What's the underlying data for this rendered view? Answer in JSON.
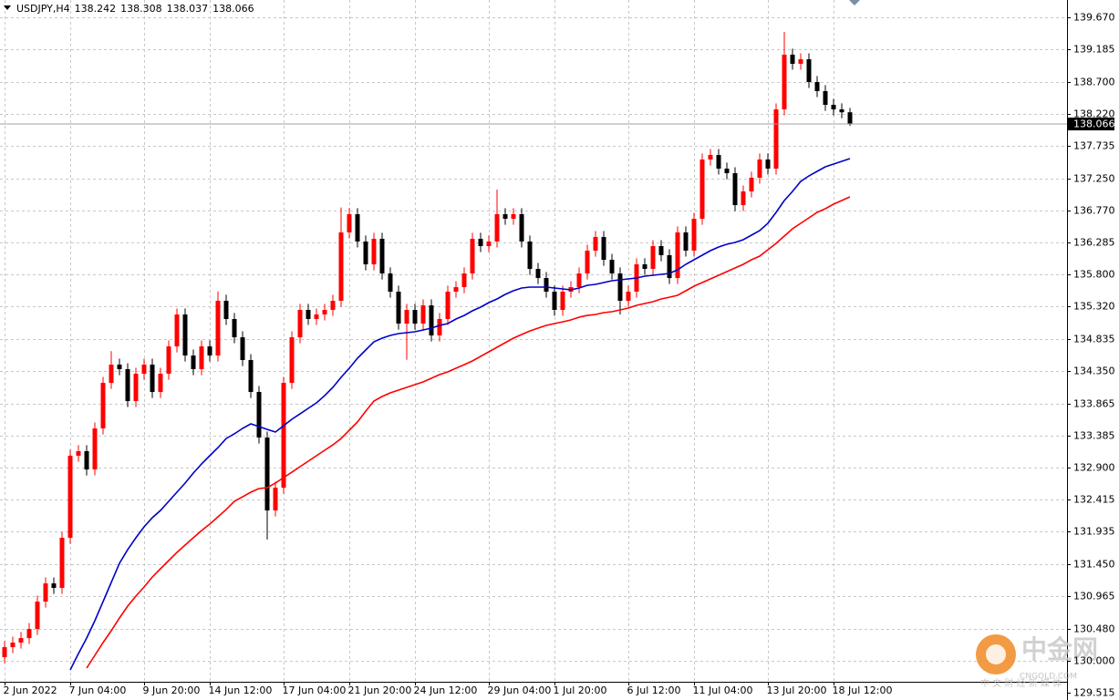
{
  "chart_data": {
    "type": "candlestick",
    "title": "USDJPY,H4",
    "categories": [
      "2 Jun 2022",
      null,
      null,
      null,
      null,
      null,
      null,
      null,
      "7 Jun 04:00",
      null,
      null,
      null,
      null,
      null,
      null,
      null,
      null,
      "9 Jun 20:00",
      null,
      null,
      null,
      null,
      null,
      null,
      null,
      "14 Jun 12:00",
      null,
      null,
      null,
      null,
      null,
      null,
      null,
      null,
      "17 Jun 04:00",
      null,
      null,
      null,
      null,
      null,
      null,
      null,
      "21 Jun 20:00",
      null,
      null,
      null,
      null,
      null,
      null,
      null,
      "24 Jun 12:00",
      null,
      null,
      null,
      null,
      null,
      null,
      null,
      null,
      "29 Jun 04:00",
      null,
      null,
      null,
      null,
      null,
      null,
      null,
      "1 Jul 20:00",
      null,
      null,
      null,
      null,
      null,
      null,
      null,
      null,
      "6 Jul 12:00",
      null,
      null,
      null,
      null,
      null,
      null,
      null,
      "11 Jul 04:00",
      null,
      null,
      null,
      null,
      null,
      null,
      null,
      null,
      "13 Jul 20:00",
      null,
      null,
      null,
      null,
      null,
      null,
      null,
      "18 Jul 12:00",
      null,
      null
    ],
    "open": [
      130.05,
      130.2,
      130.269,
      130.337,
      130.474,
      130.885,
      131.159,
      131.091,
      131.845,
      133.078,
      133.147,
      132.872,
      133.489,
      134.174,
      134.448,
      134.38,
      133.9,
      134.311,
      134.448,
      134.037,
      134.311,
      134.722,
      135.202,
      134.585,
      134.38,
      134.722,
      134.585,
      135.408,
      135.134,
      134.859,
      134.517,
      134.037,
      133.352,
      132.256,
      132.598,
      134.174,
      134.859,
      135.271,
      135.134,
      135.202,
      135.271,
      135.408,
      136.436,
      136.71,
      136.299,
      135.956,
      136.34,
      135.819,
      135.545,
      135.065,
      135.271,
      135.065,
      135.339,
      134.887,
      135.134,
      135.545,
      135.613,
      135.819,
      136.34,
      136.23,
      136.299,
      136.71,
      136.641,
      136.71,
      136.299,
      135.887,
      135.75,
      135.545,
      135.271,
      135.545,
      135.613,
      135.819,
      136.161,
      136.367,
      136.024,
      135.819,
      135.408,
      135.545,
      135.956,
      135.887,
      136.23,
      136.093,
      135.75,
      136.436,
      136.162,
      136.641,
      137.532,
      137.6,
      137.395,
      137.326,
      136.846,
      137.052,
      137.258,
      137.532,
      137.395,
      138.286,
      139.108,
      138.971,
      139.039,
      138.697,
      138.56,
      138.354,
      138.286,
      138.242
    ],
    "high": [
      130.29,
      130.359,
      130.427,
      130.564,
      130.975,
      131.249,
      131.249,
      131.935,
      133.168,
      133.237,
      133.237,
      133.579,
      134.264,
      134.65,
      134.538,
      134.47,
      134.401,
      134.538,
      134.538,
      134.401,
      134.812,
      135.292,
      135.292,
      134.675,
      134.812,
      134.812,
      135.55,
      135.498,
      135.224,
      134.949,
      134.607,
      134.127,
      133.442,
      132.688,
      134.264,
      134.949,
      135.361,
      135.361,
      135.292,
      135.361,
      135.498,
      136.81,
      136.8,
      136.8,
      136.389,
      136.43,
      136.43,
      135.909,
      135.635,
      135.361,
      135.361,
      135.429,
      135.429,
      135.224,
      135.635,
      135.703,
      135.909,
      136.43,
      136.43,
      136.389,
      137.08,
      136.8,
      136.8,
      136.8,
      136.389,
      135.977,
      135.84,
      135.635,
      135.635,
      135.703,
      135.909,
      136.251,
      136.457,
      136.457,
      136.114,
      135.909,
      135.635,
      136.046,
      136.046,
      136.32,
      136.32,
      136.183,
      136.526,
      136.526,
      136.731,
      137.622,
      137.69,
      137.69,
      137.485,
      137.416,
      137.142,
      137.348,
      137.622,
      137.622,
      138.376,
      139.45,
      139.198,
      139.129,
      139.129,
      138.787,
      138.65,
      138.444,
      138.376,
      138.308
    ],
    "low": [
      129.96,
      130.11,
      130.179,
      130.247,
      130.384,
      130.795,
      131.001,
      131.001,
      131.755,
      132.988,
      132.782,
      132.782,
      133.399,
      134.084,
      134.29,
      133.81,
      133.81,
      134.221,
      133.947,
      133.947,
      134.221,
      134.632,
      134.495,
      134.29,
      134.29,
      134.495,
      134.495,
      135.044,
      134.769,
      134.427,
      133.947,
      133.262,
      131.82,
      132.166,
      132.508,
      134.084,
      134.769,
      135.044,
      135.044,
      135.112,
      135.181,
      135.318,
      136.346,
      136.209,
      135.866,
      135.866,
      135.729,
      135.455,
      134.975,
      134.52,
      134.975,
      134.975,
      134.797,
      134.797,
      135.044,
      135.455,
      135.523,
      135.729,
      136.14,
      136.14,
      136.209,
      136.551,
      136.551,
      136.209,
      135.797,
      135.66,
      135.455,
      135.181,
      135.181,
      135.455,
      135.523,
      135.729,
      136.071,
      135.934,
      135.729,
      135.2,
      135.318,
      135.455,
      135.797,
      135.797,
      136.003,
      135.66,
      135.66,
      136.072,
      136.072,
      136.551,
      137.442,
      137.305,
      137.236,
      136.756,
      136.756,
      136.962,
      137.168,
      137.305,
      137.305,
      138.196,
      138.881,
      138.881,
      138.607,
      138.47,
      138.264,
      138.196,
      138.152,
      138.037
    ],
    "close": [
      130.2,
      130.269,
      130.337,
      130.474,
      130.885,
      131.159,
      131.091,
      131.845,
      133.078,
      133.147,
      132.872,
      133.489,
      134.174,
      134.448,
      134.38,
      133.9,
      134.311,
      134.448,
      134.037,
      134.311,
      134.722,
      135.202,
      134.585,
      134.38,
      134.722,
      134.585,
      135.408,
      135.134,
      134.859,
      134.517,
      134.037,
      133.352,
      132.256,
      132.598,
      134.174,
      134.859,
      135.271,
      135.134,
      135.202,
      135.271,
      135.408,
      136.436,
      136.71,
      136.299,
      135.956,
      136.34,
      135.819,
      135.545,
      135.065,
      135.271,
      135.065,
      135.339,
      134.887,
      135.134,
      135.545,
      135.613,
      135.819,
      136.34,
      136.23,
      136.299,
      136.71,
      136.641,
      136.71,
      136.299,
      135.887,
      135.75,
      135.545,
      135.271,
      135.545,
      135.613,
      135.819,
      136.161,
      136.367,
      136.024,
      135.819,
      135.408,
      135.545,
      135.956,
      135.887,
      136.23,
      136.093,
      135.75,
      136.436,
      136.162,
      136.641,
      137.532,
      137.6,
      137.395,
      137.326,
      136.846,
      137.052,
      137.258,
      137.532,
      137.395,
      138.286,
      139.108,
      138.971,
      139.039,
      138.697,
      138.56,
      138.354,
      138.286,
      138.242,
      138.066
    ],
    "up_color": "#ff0000",
    "down_color": "#000000",
    "series": [
      {
        "color": "#0000c8",
        "values": [
          null,
          null,
          null,
          null,
          null,
          null,
          null,
          null,
          129.858,
          130.104,
          130.337,
          130.598,
          130.885,
          131.173,
          131.461,
          131.666,
          131.845,
          132.009,
          132.146,
          132.256,
          132.393,
          132.53,
          132.667,
          132.818,
          132.955,
          133.078,
          133.201,
          133.338,
          133.407,
          133.489,
          133.558,
          133.517,
          133.475,
          133.434,
          133.53,
          133.626,
          133.708,
          133.791,
          133.873,
          133.982,
          134.106,
          134.257,
          134.394,
          134.544,
          134.668,
          134.791,
          134.846,
          134.887,
          134.914,
          134.928,
          134.942,
          134.969,
          134.997,
          135.038,
          135.065,
          135.134,
          135.188,
          135.257,
          135.312,
          135.38,
          135.435,
          135.504,
          135.558,
          135.6,
          135.613,
          135.613,
          135.613,
          135.6,
          135.586,
          135.572,
          135.6,
          135.641,
          135.654,
          135.682,
          135.709,
          135.723,
          135.737,
          135.75,
          135.778,
          135.791,
          135.805,
          135.819,
          135.874,
          135.956,
          136.024,
          136.093,
          136.161,
          136.216,
          136.257,
          136.285,
          136.326,
          136.394,
          136.463,
          136.573,
          136.737,
          136.915,
          137.052,
          137.203,
          137.285,
          137.354,
          137.422,
          137.463,
          137.504,
          137.546
        ]
      },
      {
        "color": "#ff0000",
        "values": [
          null,
          null,
          null,
          null,
          null,
          null,
          null,
          null,
          null,
          null,
          129.885,
          130.077,
          130.269,
          130.447,
          130.639,
          130.817,
          130.968,
          131.105,
          131.255,
          131.379,
          131.502,
          131.625,
          131.735,
          131.845,
          131.954,
          132.05,
          132.16,
          132.269,
          132.393,
          132.461,
          132.53,
          132.585,
          132.598,
          132.667,
          132.749,
          132.831,
          132.914,
          132.996,
          133.078,
          133.16,
          133.242,
          133.338,
          133.462,
          133.585,
          133.749,
          133.9,
          133.969,
          134.024,
          134.065,
          134.106,
          134.147,
          134.188,
          134.243,
          134.298,
          134.339,
          134.394,
          134.448,
          134.503,
          134.572,
          134.64,
          134.709,
          134.777,
          134.846,
          134.901,
          134.955,
          134.997,
          135.038,
          135.065,
          135.092,
          135.12,
          135.161,
          135.188,
          135.202,
          135.23,
          135.243,
          135.271,
          135.298,
          135.339,
          135.367,
          135.394,
          135.435,
          135.462,
          135.49,
          135.558,
          135.627,
          135.682,
          135.737,
          135.791,
          135.846,
          135.901,
          135.956,
          136.024,
          136.079,
          136.175,
          136.271,
          136.381,
          136.49,
          136.573,
          136.655,
          136.737,
          136.792,
          136.86,
          136.915,
          136.97
        ]
      }
    ],
    "ylim": [
      129.68,
      139.93
    ],
    "yticks": [
      {
        "value": 139.67,
        "label": "139.670"
      },
      139.185,
      {
        "value": 138.7,
        "label": "138.700"
      },
      {
        "value": 138.22,
        "label": "138.220"
      },
      137.735,
      {
        "value": 137.25,
        "label": "137.250"
      },
      {
        "value": 136.77,
        "label": "136.770"
      },
      136.285,
      {
        "value": 135.8,
        "label": "135.800"
      },
      {
        "value": 135.32,
        "label": "135.320"
      },
      134.835,
      {
        "value": 134.35,
        "label": "134.350"
      },
      133.865,
      133.385,
      {
        "value": 132.9,
        "label": "132.900"
      },
      132.415,
      131.935,
      {
        "value": 131.45,
        "label": "131.450"
      },
      130.965,
      {
        "value": 130.48,
        "label": "130.480"
      },
      {
        "value": 130,
        "label": "130.000"
      },
      129.515
    ],
    "current_price": 138.066,
    "grid": true
  },
  "watermark": {
    "name": "中金网",
    "site": "CNGOLD.COM",
    "slogan": "中 文 财 经 新 媒 体"
  }
}
